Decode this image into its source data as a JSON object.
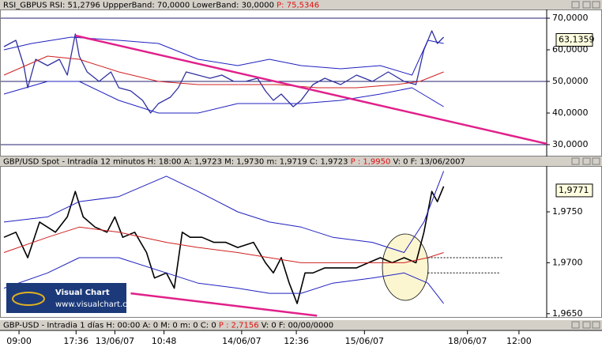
{
  "chart_data": [
    {
      "type": "line",
      "header": [
        "RSI_GBPUS RSI: 51,2796 UppperBand: 70,0000 LowerBand: 30,0000 ",
        "P: 75,5346"
      ],
      "xlim": [
        0,
        690
      ],
      "ylim": [
        26.25,
        72.75
      ],
      "yticks": [
        {
          "value": 30,
          "label": "30,0000"
        },
        {
          "value": 40,
          "label": "40,0000"
        },
        {
          "value": 50,
          "label": "50,0000"
        },
        {
          "value": 60,
          "label": "60,0000"
        },
        {
          "value": 70,
          "label": "70,0000"
        }
      ],
      "hlines": [
        70,
        50,
        30
      ],
      "last_value": {
        "value": 63.1359,
        "label": "63,1359"
      },
      "series": [
        {
          "color": "#3030a0",
          "width": 1.3,
          "x": [
            5,
            20,
            30,
            35,
            45,
            60,
            75,
            85,
            95,
            100,
            110,
            125,
            140,
            150,
            165,
            180,
            190,
            200,
            215,
            225,
            235,
            250,
            265,
            280,
            295,
            310,
            325,
            335,
            345,
            355,
            370,
            380,
            395,
            410,
            430,
            450,
            470,
            490,
            510,
            525,
            535,
            545,
            552,
            560
          ],
          "values": [
            61,
            63,
            55,
            48,
            57,
            55,
            57,
            52,
            65,
            58,
            53,
            50,
            53,
            48,
            47,
            44,
            40,
            43,
            45,
            48,
            53,
            52,
            51,
            52,
            50,
            50,
            51,
            47,
            44,
            46,
            42,
            44,
            49,
            51,
            49,
            52,
            50,
            53,
            50,
            49,
            60,
            66,
            62,
            64
          ]
        },
        {
          "color": "#2020c0",
          "width": 1,
          "x": [
            5,
            40,
            90,
            150,
            200,
            250,
            300,
            340,
            380,
            430,
            480,
            520,
            540,
            560
          ],
          "values": [
            60,
            62,
            64,
            63,
            62,
            57,
            55,
            57,
            55,
            54,
            55,
            52,
            63,
            62
          ]
        },
        {
          "color": "#2020c0",
          "width": 1,
          "x": [
            5,
            60,
            100,
            150,
            200,
            250,
            300,
            340,
            380,
            430,
            480,
            520,
            540,
            560
          ],
          "values": [
            46,
            50,
            50,
            44,
            40,
            40,
            43,
            43,
            43,
            44,
            46,
            48,
            45,
            42
          ]
        },
        {
          "color": "#d02020",
          "width": 1,
          "x": [
            5,
            60,
            100,
            150,
            200,
            250,
            300,
            350,
            400,
            450,
            500,
            530,
            560
          ],
          "values": [
            52,
            58,
            57,
            53,
            50,
            49,
            49,
            49,
            48,
            48,
            49,
            50,
            53
          ]
        },
        {
          "color": "#e0208a",
          "width": 2.5,
          "x": [
            95,
            695
          ],
          "values": [
            64.5,
            30
          ]
        }
      ]
    },
    {
      "type": "line",
      "header": [
        "GBP/USD Spot - Intradía 12 minutos H: 18:00 A: 1,9723 M: 1,9730 m: 1,9719 C: 1,9723 ",
        "P : 1,9950",
        " V: 0 F: 13/06/2007"
      ],
      "xlim": [
        0,
        690
      ],
      "ylim": [
        1.9646,
        1.9795
      ],
      "yticks": [
        {
          "value": 1.965,
          "label": "1,9650"
        },
        {
          "value": 1.97,
          "label": "1,9700"
        },
        {
          "value": 1.975,
          "label": "1,9750"
        }
      ],
      "xticks": [
        {
          "value": 24,
          "label": "09:00"
        },
        {
          "value": 96,
          "label": "17:36"
        },
        {
          "value": 145,
          "label": "13/06/07"
        },
        {
          "value": 207,
          "label": "10:48"
        },
        {
          "value": 305,
          "label": "14/06/07"
        },
        {
          "value": 374,
          "label": "12:36"
        },
        {
          "value": 460,
          "label": "15/06/07"
        },
        {
          "value": 590,
          "label": "18/06/07"
        },
        {
          "value": 655,
          "label": "12:00"
        }
      ],
      "last_value": {
        "value": 1.9771,
        "label": "1,9771"
      },
      "logo": [
        "Visual Chart",
        "www.visualchart.com"
      ],
      "series": [
        {
          "color": "#000000",
          "width": 1.6,
          "x": [
            5,
            20,
            35,
            50,
            70,
            85,
            95,
            105,
            120,
            135,
            145,
            155,
            170,
            185,
            195,
            210,
            220,
            230,
            240,
            255,
            270,
            285,
            300,
            320,
            335,
            345,
            355,
            365,
            375,
            385,
            395,
            410,
            430,
            450,
            465,
            480,
            495,
            510,
            525,
            535,
            545,
            552,
            560
          ],
          "values": [
            1.9725,
            1.973,
            1.9705,
            1.974,
            1.973,
            1.9745,
            1.977,
            1.9745,
            1.9735,
            1.973,
            1.9745,
            1.9725,
            1.973,
            1.971,
            1.9685,
            1.969,
            1.9675,
            1.973,
            1.9725,
            1.9725,
            1.972,
            1.972,
            1.9715,
            1.972,
            1.97,
            1.969,
            1.9705,
            1.968,
            1.966,
            1.969,
            1.969,
            1.9695,
            1.9695,
            1.9695,
            1.97,
            1.9705,
            1.97,
            1.9705,
            1.97,
            1.973,
            1.977,
            1.976,
            1.9775
          ]
        },
        {
          "color": "#2020c0",
          "width": 1,
          "x": [
            5,
            60,
            100,
            150,
            210,
            250,
            300,
            340,
            380,
            420,
            470,
            510,
            535,
            560
          ],
          "values": [
            1.974,
            1.9745,
            1.976,
            1.9765,
            1.9785,
            1.977,
            1.975,
            1.974,
            1.9735,
            1.9725,
            1.972,
            1.971,
            1.974,
            1.979
          ]
        },
        {
          "color": "#2020c0",
          "width": 1,
          "x": [
            5,
            60,
            100,
            150,
            210,
            250,
            300,
            340,
            380,
            420,
            470,
            510,
            540,
            560
          ],
          "values": [
            1.9675,
            1.969,
            1.9705,
            1.9705,
            1.969,
            1.968,
            1.9675,
            1.967,
            1.967,
            1.968,
            1.9685,
            1.969,
            1.968,
            1.966
          ]
        },
        {
          "color": "#d02020",
          "width": 1,
          "x": [
            5,
            60,
            100,
            150,
            210,
            250,
            300,
            340,
            380,
            420,
            470,
            510,
            540,
            560
          ],
          "values": [
            1.971,
            1.9725,
            1.9735,
            1.973,
            1.972,
            1.9715,
            1.971,
            1.9705,
            1.97,
            1.97,
            1.97,
            1.97,
            1.9705,
            1.971
          ]
        },
        {
          "color": "#e0208a",
          "width": 2.5,
          "x": [
            165,
            400
          ],
          "values": [
            1.967,
            1.9648
          ]
        },
        {
          "color": "#000000",
          "width": 1,
          "dash": true,
          "x": [
            540,
            635
          ],
          "values": [
            1.9705,
            1.9705
          ]
        },
        {
          "color": "#000000",
          "width": 1,
          "dash": true,
          "x": [
            540,
            630
          ],
          "values": [
            1.969,
            1.969
          ]
        }
      ]
    },
    {
      "type": "status",
      "header": [
        "GBP-USD - Intradia 1 días H: 00:00 A: 0 M: 0 m: 0 C: 0 ",
        "P : 2,7156",
        " V: 0 F: 00/00/0000"
      ]
    }
  ]
}
